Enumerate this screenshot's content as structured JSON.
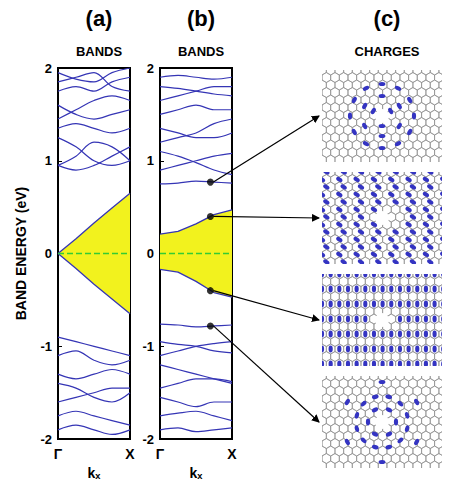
{
  "chart_data": [
    {
      "type": "line",
      "panel": "(a)",
      "title": "BANDS",
      "xlabel": "kₓ",
      "ylabel": "BAND ENERGY (eV)",
      "xlim": [
        0,
        1
      ],
      "xticks": [
        {
          "value": 0,
          "label": "Γ"
        },
        {
          "value": 1,
          "label": "X"
        }
      ],
      "ylim": [
        -2,
        2
      ],
      "yticks": [
        -2,
        -1,
        0,
        1,
        2
      ],
      "grid": false,
      "color": "#3535b5",
      "x": [
        0,
        0.25,
        0.5,
        0.75,
        1
      ],
      "series": [
        {
          "values": [
            0.95,
            0.9,
            0.95,
            1.05,
            1.15
          ]
        },
        {
          "values": [
            0.95,
            1.05,
            1.2,
            1.15,
            1.0
          ]
        },
        {
          "values": [
            1.25,
            1.15,
            1.0,
            0.95,
            1.0
          ]
        },
        {
          "values": [
            1.35,
            1.4,
            1.35,
            1.3,
            1.35
          ]
        },
        {
          "values": [
            1.45,
            1.55,
            1.65,
            1.7,
            1.65
          ]
        },
        {
          "values": [
            1.6,
            1.5,
            1.45,
            1.5,
            1.55
          ]
        },
        {
          "values": [
            1.75,
            1.8,
            1.75,
            1.85,
            1.9
          ]
        },
        {
          "values": [
            1.85,
            1.9,
            1.95,
            1.8,
            1.75
          ]
        },
        {
          "values": [
            1.95,
            1.88,
            1.85,
            1.95,
            2.0
          ]
        },
        {
          "values": [
            -0.9,
            -0.95,
            -1.0,
            -1.05,
            -1.1
          ]
        },
        {
          "values": [
            -1.1,
            -1.05,
            -1.15,
            -1.2,
            -1.15
          ]
        },
        {
          "values": [
            -1.3,
            -1.35,
            -1.3,
            -1.25,
            -1.3
          ]
        },
        {
          "values": [
            -1.4,
            -1.45,
            -1.55,
            -1.6,
            -1.5
          ]
        },
        {
          "values": [
            -1.6,
            -1.55,
            -1.5,
            -1.45,
            -1.45
          ]
        },
        {
          "values": [
            -1.75,
            -1.7,
            -1.75,
            -1.8,
            -1.85
          ]
        },
        {
          "values": [
            -1.9,
            -1.85,
            -1.9,
            -1.95,
            -1.9
          ]
        }
      ],
      "gap": {
        "upper": [
          0,
          0.16,
          0.33,
          0.49,
          0.65
        ],
        "lower": [
          0,
          -0.16,
          -0.33,
          -0.49,
          -0.65
        ],
        "color": "#f2f21e"
      },
      "fermi_level": {
        "value": 0,
        "color": "#33cc33",
        "line_style": "dashed"
      }
    },
    {
      "type": "line",
      "panel": "(b)",
      "title": "BANDS",
      "xlabel": "kₓ",
      "xlim": [
        0,
        1
      ],
      "xticks": [
        {
          "value": 0,
          "label": "Γ"
        },
        {
          "value": 1,
          "label": "X"
        }
      ],
      "ylim": [
        -2,
        2
      ],
      "yticks": [
        -2,
        -1,
        0,
        1,
        2
      ],
      "grid": false,
      "color": "#3535b5",
      "x": [
        0,
        0.25,
        0.5,
        0.75,
        1
      ],
      "series": [
        {
          "values": [
            0.75,
            0.76,
            0.78,
            0.77,
            0.76
          ]
        },
        {
          "values": [
            0.9,
            0.95,
            1.0,
            1.05,
            1.08
          ]
        },
        {
          "values": [
            1.1,
            1.05,
            0.98,
            0.9,
            0.85
          ]
        },
        {
          "values": [
            1.2,
            1.25,
            1.3,
            1.4,
            1.45
          ]
        },
        {
          "values": [
            1.35,
            1.3,
            1.25,
            1.25,
            1.3
          ]
        },
        {
          "values": [
            1.5,
            1.55,
            1.6,
            1.55,
            1.55
          ]
        },
        {
          "values": [
            1.65,
            1.7,
            1.75,
            1.8,
            1.8
          ]
        },
        {
          "values": [
            1.8,
            1.78,
            1.75,
            1.72,
            1.7
          ]
        },
        {
          "values": [
            1.9,
            1.92,
            1.9,
            1.88,
            1.9
          ]
        },
        {
          "values": [
            -0.76,
            -0.77,
            -0.79,
            -0.78,
            -0.77
          ]
        },
        {
          "values": [
            -0.95,
            -0.98,
            -1.0,
            -1.05,
            -1.07
          ]
        },
        {
          "values": [
            -1.1,
            -1.05,
            -1.0,
            -0.97,
            -0.95
          ]
        },
        {
          "values": [
            -1.2,
            -1.25,
            -1.3,
            -1.35,
            -1.4
          ]
        },
        {
          "values": [
            -1.45,
            -1.4,
            -1.35,
            -1.35,
            -1.38
          ]
        },
        {
          "values": [
            -1.55,
            -1.6,
            -1.65,
            -1.6,
            -1.6
          ]
        },
        {
          "values": [
            -1.75,
            -1.72,
            -1.7,
            -1.75,
            -1.8
          ]
        },
        {
          "values": [
            -1.9,
            -1.88,
            -1.92,
            -1.9,
            -1.88
          ]
        }
      ],
      "gap": {
        "upper": [
          0.21,
          0.24,
          0.32,
          0.42,
          0.47
        ],
        "lower": [
          -0.17,
          -0.2,
          -0.3,
          -0.42,
          -0.47
        ],
        "color": "#f2f21e"
      },
      "fermi_level": {
        "value": 0,
        "color": "#33cc33",
        "line_style": "dashed"
      },
      "points": {
        "x": [
          0.7,
          0.7,
          0.7,
          0.7
        ],
        "values": [
          0.77,
          0.4,
          -0.4,
          -0.78
        ],
        "color": "#000000"
      }
    }
  ],
  "charges": {
    "panel": "(c)",
    "title": "CHARGES"
  }
}
